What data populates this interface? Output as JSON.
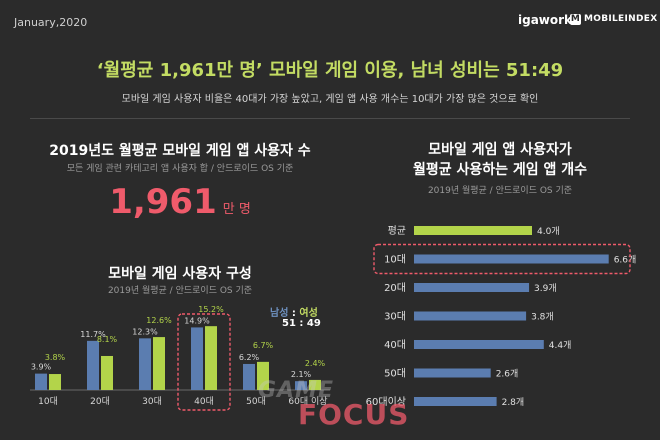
{
  "date": "January,2020",
  "logos": {
    "igaworks": "igaworks",
    "mobileindex": "MOBILEINDEX",
    "badge": "M"
  },
  "title": "‘월평균 1,961만 명’ 모바일 게임 이용, 남녀 성비는 51:49",
  "subtitle": "모바일 게임 사용자 비율은 40대가 가장 높았고, 게임 앱 사용 개수는 10대가 가장 많은 것으로 확인",
  "left_panel": {
    "heading": "2019년도 월평균 모바일 게임 앱 사용자 수",
    "note": "모든 게임 관련 카테고리 앱 사용자 합 / 안드로이드 OS 기준",
    "big_number": "1,961",
    "big_unit": "만 명"
  },
  "composition": {
    "heading": "모바일 게임 사용자 구성",
    "note": "2019년 월평균 / 안드로이드 OS 기준",
    "legend_male": "남성",
    "legend_sep": " : ",
    "legend_female": "여성",
    "ratio": "51 : 49"
  },
  "right_panel": {
    "heading_line1": "모바일 게임 앱 사용자가",
    "heading_line2": "월평균 사용하는 게임 앱 개수",
    "note": "2019년 월평균 / 안드로이드 OS 기준"
  },
  "watermark": {
    "line1": "GAME",
    "line2": "FOCUS"
  },
  "colors": {
    "male": "#5b7db0",
    "female": "#b3d44a",
    "highlight": "#ef5b6b",
    "bg": "#2b2b2b",
    "axis": "#6a6a6a"
  },
  "chart_data": [
    {
      "type": "bar",
      "categories": [
        "10대",
        "20대",
        "30대",
        "40대",
        "50대",
        "60대 이상"
      ],
      "series": [
        {
          "name": "남성",
          "values": [
            3.9,
            11.7,
            12.3,
            14.9,
            6.2,
            2.1
          ],
          "labels": [
            "3.9%",
            "11.7%",
            "12.3%",
            "14.9%",
            "6.2%",
            "2.1%"
          ]
        },
        {
          "name": "여성",
          "values": [
            3.8,
            8.1,
            12.6,
            15.2,
            6.7,
            2.4
          ],
          "labels": [
            "3.8%",
            "8.1%",
            "12.6%",
            "15.2%",
            "6.7%",
            "2.4%"
          ]
        }
      ],
      "highlight": "40대",
      "ylim": [
        0,
        16
      ],
      "grid": false
    },
    {
      "type": "bar",
      "orientation": "horizontal",
      "categories": [
        "평균",
        "10대",
        "20대",
        "30대",
        "40대",
        "50대",
        "60대이상"
      ],
      "values": [
        4.0,
        6.6,
        3.9,
        3.8,
        4.4,
        2.6,
        2.8
      ],
      "labels": [
        "4.0개",
        "6.6개",
        "3.9개",
        "3.8개",
        "4.4개",
        "2.6개",
        "2.8개"
      ],
      "highlight": "10대",
      "xlim": [
        0,
        7
      ],
      "grid": false
    }
  ]
}
